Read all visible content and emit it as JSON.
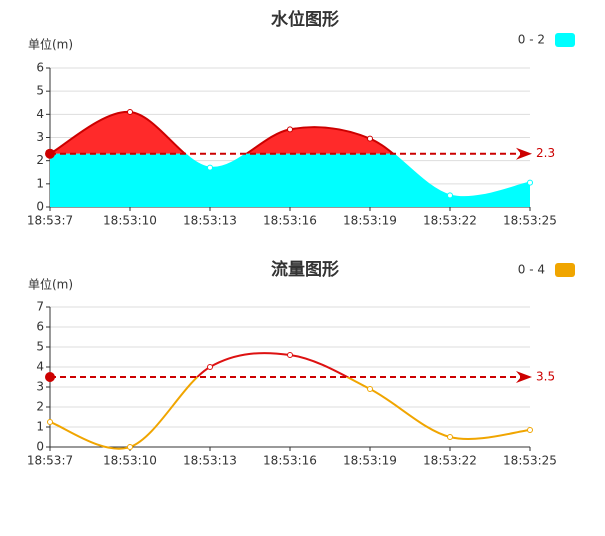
{
  "chart_data": [
    {
      "type": "area",
      "title": "水位图形",
      "y_label": "单位(m)",
      "categories": [
        "18:53:7",
        "18:53:10",
        "18:53:13",
        "18:53:16",
        "18:53:19",
        "18:53:22",
        "18:53:25"
      ],
      "values": [
        2.3,
        4.1,
        1.7,
        3.35,
        2.95,
        0.5,
        1.05
      ],
      "color": "#00ffff",
      "above_color": "#ff2a2a",
      "line_above_color": "#cc0000",
      "legend": "0 - 2",
      "threshold": 2.3,
      "threshold_color": "#cc0000",
      "ylim": [
        0,
        6
      ],
      "yticks": [
        0,
        1,
        2,
        3,
        4,
        5,
        6
      ],
      "grid": true
    },
    {
      "type": "line",
      "title": "流量图形",
      "y_label": "单位(m)",
      "categories": [
        "18:53:7",
        "18:53:10",
        "18:53:13",
        "18:53:16",
        "18:53:19",
        "18:53:22",
        "18:53:25"
      ],
      "values": [
        1.25,
        0,
        4.0,
        4.6,
        2.9,
        0.5,
        0.85
      ],
      "color": "#f0a500",
      "above_color": "#dd1111",
      "line_above_color": "#dd1111",
      "legend": "0 - 4",
      "threshold": 3.5,
      "threshold_color": "#cc0000",
      "ylim": [
        0,
        7
      ],
      "yticks": [
        0,
        1,
        2,
        3,
        4,
        5,
        6,
        7
      ],
      "grid": true
    }
  ]
}
